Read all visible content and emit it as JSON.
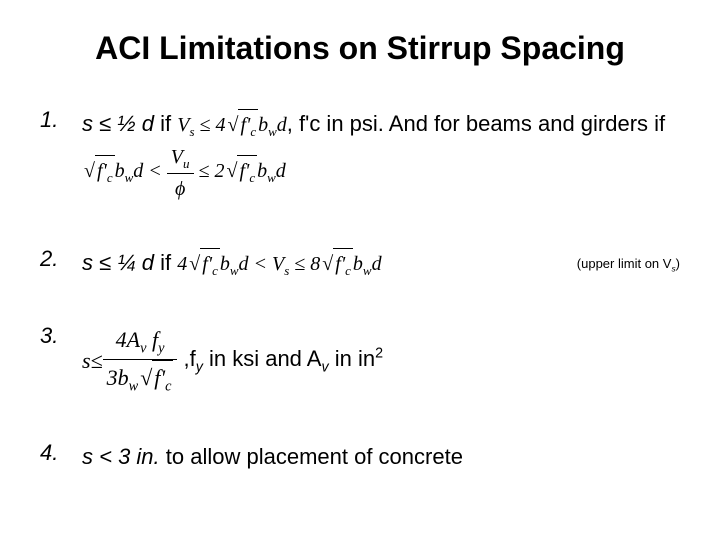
{
  "title": "ACI Limitations on Stirrup Spacing",
  "items": {
    "1": {
      "num": "1.",
      "lead": "s ≤ ½ d",
      "if": " if ",
      "f1_pre": "V",
      "f1_sub": "s",
      "f1_le": " ≤ 4",
      "f1_sqrt": "f'",
      "f1_sqrt_sub": "c",
      "f1_post": "b",
      "f1_post_sub": "w",
      "f1_d": "d",
      "mid": ", f'c in psi.  And for beams and girders if  ",
      "f2_sqrt": "f'",
      "f2_sqrt_sub": "c",
      "f2_b": "b",
      "f2_b_sub": "w",
      "f2_d": "d",
      "f2_lt": " < ",
      "f2_frac_n": "V",
      "f2_frac_n_sub": "u",
      "f2_frac_d": "ϕ",
      "f2_le": " ≤ 2",
      "f2_sqrt2": "f'",
      "f2_sqrt2_sub": "c",
      "f2_b2": "b",
      "f2_b2_sub": "w",
      "f2_d2": "d"
    },
    "2": {
      "num": "2.",
      "lead": "s ≤ ¼ d",
      "if": " if  ",
      "f_pre": "4",
      "f_sqrt": "f'",
      "f_sqrt_sub": "c",
      "f_b": "b",
      "f_b_sub": "w",
      "f_d": "d",
      "f_lt": " < V",
      "f_v_sub": "s",
      "f_le": " ≤ 8",
      "f_sqrt2": "f'",
      "f_sqrt2_sub": "c",
      "f_b2": "b",
      "f_b2_sub": "w",
      "f_d2": "d",
      "note_pre": "(upper limit on V",
      "note_sub": "s",
      "note_post": ")"
    },
    "3": {
      "num": "3.",
      "s": "s",
      "le": " ≤ ",
      "frac_n_pre": "4A",
      "frac_n_sub1": "v",
      "frac_n_mid": " f",
      "frac_n_sub2": "y",
      "frac_d_pre": "3b",
      "frac_d_sub": "w",
      "frac_d_sqrt": "f'",
      "frac_d_sqrt_sub": "c",
      "tail_comma": ",",
      "tail_f": "f",
      "tail_f_sub": "y",
      "tail_mid": " in ksi and A",
      "tail_a_sub": "v",
      "tail_in": " in in",
      "tail_sup": "2"
    },
    "4": {
      "num": "4.",
      "lead": "s < 3 in.",
      "tail": " to allow placement of concrete"
    }
  }
}
